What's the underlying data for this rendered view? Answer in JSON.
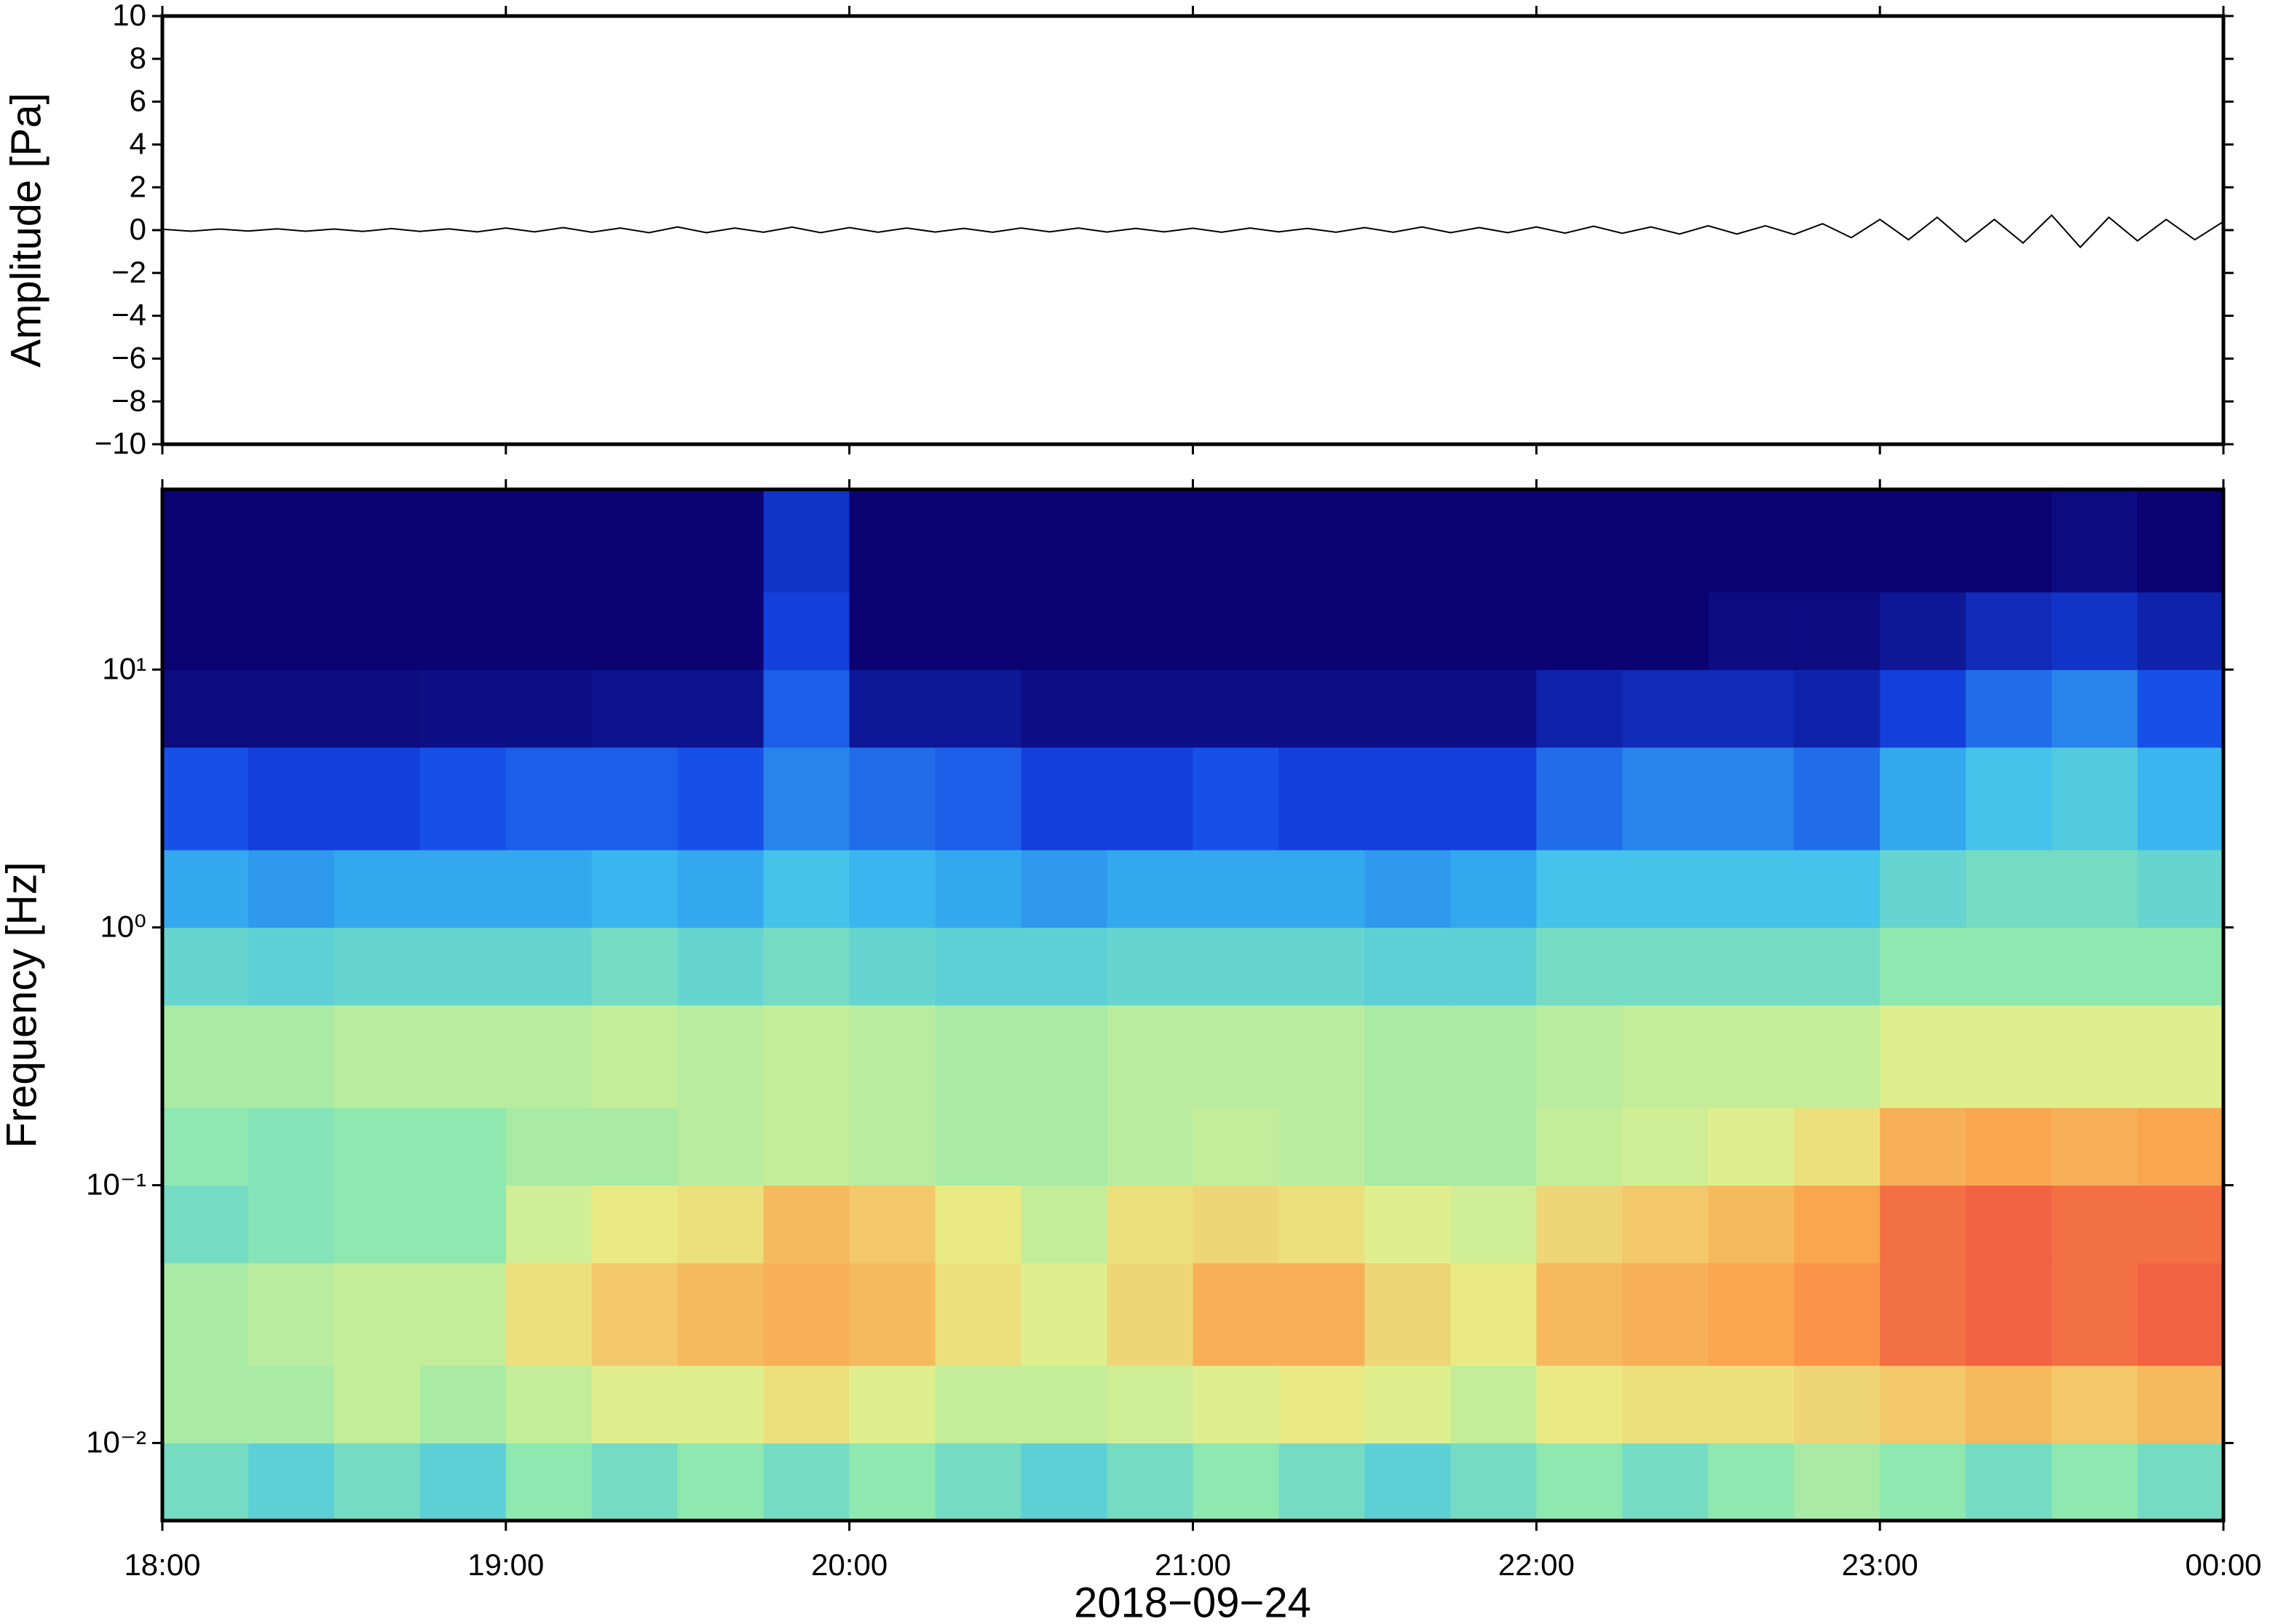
{
  "chart_data": [
    {
      "type": "line",
      "ylabel": "Amplitude [Pa]",
      "color": "#000000",
      "ylim": [
        -10,
        10
      ],
      "yticks": [
        {
          "value": -10,
          "label": "−10"
        },
        {
          "value": -8,
          "label": "−8"
        },
        {
          "value": -6,
          "label": "−6"
        },
        {
          "value": -4,
          "label": "−4"
        },
        {
          "value": -2,
          "label": "−2"
        },
        0,
        2,
        4,
        6,
        8,
        10
      ],
      "values": [
        0.04,
        -0.05,
        0.05,
        -0.04,
        0.06,
        -0.05,
        0.05,
        -0.06,
        0.07,
        -0.06,
        0.06,
        -0.08,
        0.1,
        -0.08,
        0.12,
        -0.1,
        0.1,
        -0.12,
        0.15,
        -0.12,
        0.1,
        -0.1,
        0.14,
        -0.12,
        0.12,
        -0.1,
        0.1,
        -0.09,
        0.08,
        -0.1,
        0.1,
        -0.08,
        0.1,
        -0.09,
        0.08,
        -0.08,
        0.09,
        -0.1,
        0.1,
        -0.08,
        0.08,
        -0.1,
        0.12,
        -0.1,
        0.15,
        -0.12,
        0.12,
        -0.12,
        0.15,
        -0.14,
        0.18,
        -0.15,
        0.15,
        -0.18,
        0.2,
        -0.18,
        0.2,
        -0.2,
        0.3,
        -0.35,
        0.5,
        -0.45,
        0.6,
        -0.55,
        0.5,
        -0.6,
        0.7,
        -0.8,
        0.6,
        -0.5,
        0.5,
        -0.45,
        0.4
      ]
    },
    {
      "type": "heatmap",
      "ylabel": "Frequency [Hz]",
      "xlabel": "2018−09−24",
      "xticks": [
        "18:00",
        "19:00",
        "20:00",
        "21:00",
        "22:00",
        "23:00",
        "00:00"
      ],
      "log_y": true,
      "ylim": [
        0.005,
        50
      ],
      "yticks": [
        {
          "value": 0.01,
          "label": "10⁻²"
        },
        {
          "value": 0.1,
          "label": "10⁻¹"
        },
        {
          "value": 1,
          "label": "10⁰"
        },
        {
          "value": 10,
          "label": "10¹"
        }
      ],
      "yedges": [
        0.005,
        0.01,
        0.02,
        0.05,
        0.1,
        0.2,
        0.5,
        1,
        2,
        5,
        10,
        20,
        50
      ],
      "clim": [
        0,
        1
      ],
      "colors": [
        "#0b0372",
        "#1446e6",
        "#3cc0f0",
        "#8ee8b0",
        "#e8f08a",
        "#fba04a",
        "#e8283c"
      ],
      "z": [
        [
          0.45,
          0.4,
          0.45,
          0.4,
          0.5,
          0.45,
          0.5,
          0.45,
          0.5,
          0.45,
          0.4,
          0.45,
          0.5,
          0.45,
          0.4,
          0.45,
          0.5,
          0.45,
          0.5,
          0.55,
          0.5,
          0.45,
          0.5,
          0.45
        ],
        [
          0.55,
          0.55,
          0.6,
          0.55,
          0.6,
          0.65,
          0.65,
          0.7,
          0.65,
          0.6,
          0.6,
          0.62,
          0.65,
          0.68,
          0.65,
          0.6,
          0.68,
          0.7,
          0.7,
          0.72,
          0.75,
          0.78,
          0.75,
          0.78
        ],
        [
          0.55,
          0.58,
          0.6,
          0.6,
          0.7,
          0.75,
          0.78,
          0.8,
          0.78,
          0.7,
          0.65,
          0.72,
          0.8,
          0.8,
          0.72,
          0.68,
          0.78,
          0.8,
          0.82,
          0.85,
          0.9,
          0.92,
          0.9,
          0.92
        ],
        [
          0.45,
          0.48,
          0.5,
          0.5,
          0.62,
          0.68,
          0.7,
          0.78,
          0.75,
          0.68,
          0.6,
          0.7,
          0.72,
          0.7,
          0.65,
          0.62,
          0.72,
          0.75,
          0.78,
          0.82,
          0.9,
          0.92,
          0.9,
          0.9
        ],
        [
          0.5,
          0.48,
          0.5,
          0.5,
          0.55,
          0.55,
          0.58,
          0.6,
          0.58,
          0.55,
          0.55,
          0.58,
          0.6,
          0.58,
          0.55,
          0.55,
          0.6,
          0.62,
          0.65,
          0.7,
          0.8,
          0.82,
          0.8,
          0.82
        ],
        [
          0.55,
          0.55,
          0.58,
          0.58,
          0.58,
          0.6,
          0.58,
          0.6,
          0.58,
          0.55,
          0.55,
          0.58,
          0.58,
          0.58,
          0.55,
          0.55,
          0.58,
          0.6,
          0.6,
          0.6,
          0.65,
          0.65,
          0.65,
          0.65
        ],
        [
          0.42,
          0.4,
          0.42,
          0.42,
          0.42,
          0.45,
          0.42,
          0.45,
          0.42,
          0.4,
          0.4,
          0.42,
          0.42,
          0.42,
          0.4,
          0.4,
          0.45,
          0.45,
          0.45,
          0.45,
          0.5,
          0.5,
          0.5,
          0.5
        ],
        [
          0.3,
          0.28,
          0.3,
          0.3,
          0.3,
          0.32,
          0.3,
          0.35,
          0.32,
          0.3,
          0.28,
          0.3,
          0.3,
          0.3,
          0.28,
          0.3,
          0.35,
          0.35,
          0.35,
          0.35,
          0.42,
          0.45,
          0.45,
          0.42
        ],
        [
          0.18,
          0.15,
          0.15,
          0.18,
          0.2,
          0.2,
          0.18,
          0.25,
          0.22,
          0.2,
          0.15,
          0.15,
          0.18,
          0.15,
          0.15,
          0.15,
          0.22,
          0.25,
          0.25,
          0.22,
          0.3,
          0.35,
          0.38,
          0.32
        ],
        [
          0.02,
          0.02,
          0.02,
          0.03,
          0.03,
          0.04,
          0.04,
          0.2,
          0.05,
          0.05,
          0.03,
          0.03,
          0.03,
          0.03,
          0.03,
          0.03,
          0.08,
          0.1,
          0.1,
          0.08,
          0.15,
          0.22,
          0.25,
          0.18
        ],
        [
          0,
          0,
          0,
          0,
          0,
          0,
          0,
          0.15,
          0,
          0,
          0,
          0,
          0,
          0,
          0,
          0,
          0,
          0,
          0.02,
          0.02,
          0.05,
          0.1,
          0.12,
          0.08
        ],
        [
          0,
          0,
          0,
          0,
          0,
          0,
          0,
          0.12,
          0,
          0,
          0,
          0,
          0,
          0,
          0,
          0,
          0,
          0,
          0,
          0,
          0,
          0,
          0.02,
          0
        ]
      ]
    }
  ]
}
